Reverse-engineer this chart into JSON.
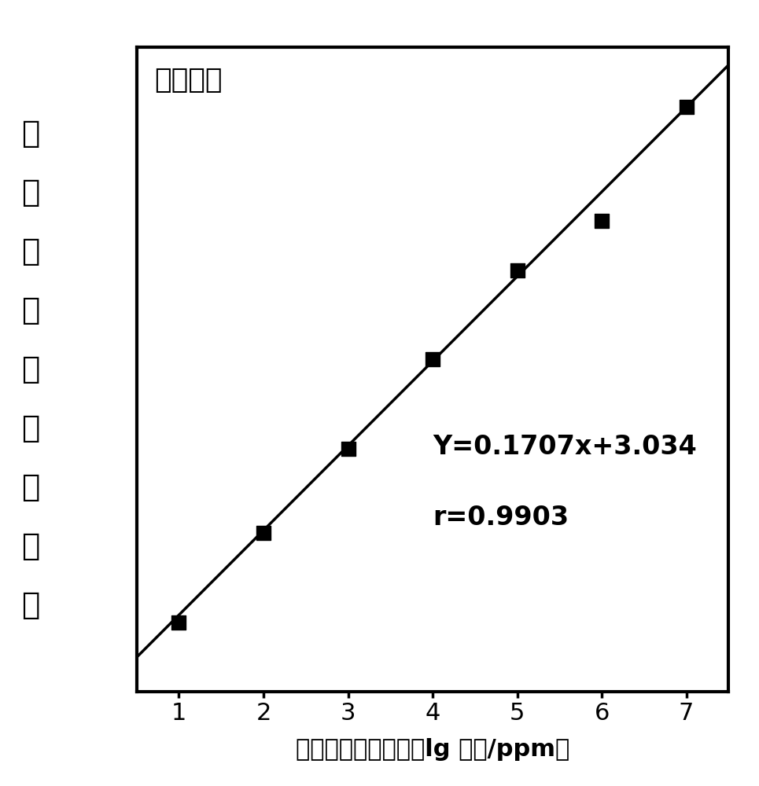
{
  "title_text": "呋喃唑酮",
  "xlabel": "呋喃唑酮浓度对数（lg 浓度/ppm）",
  "ylabel_chars": [
    "拉",
    "曼",
    "特",
    "征",
    "峰",
    "强",
    "度",
    "对",
    "数"
  ],
  "equation": "Y=0.1707x+3.034",
  "r_value": "r=0.9903",
  "slope": 0.1707,
  "intercept": 3.034,
  "x_data": [
    1,
    2,
    3,
    4,
    5,
    6,
    7
  ],
  "y_data": [
    3.19,
    3.37,
    3.54,
    3.72,
    3.9,
    4.0,
    4.23
  ],
  "xlim": [
    0.5,
    7.5
  ],
  "ylim": [
    3.05,
    4.35
  ],
  "xticks": [
    1,
    2,
    3,
    4,
    5,
    6,
    7
  ],
  "bg_color": "#ffffff",
  "line_color": "#000000",
  "marker_color": "#000000",
  "text_color": "#000000",
  "title_fontsize": 26,
  "label_fontsize": 22,
  "tick_fontsize": 22,
  "annot_fontsize": 24,
  "ylabel_fontsize": 28,
  "marker_size": 13,
  "line_width": 2.5
}
